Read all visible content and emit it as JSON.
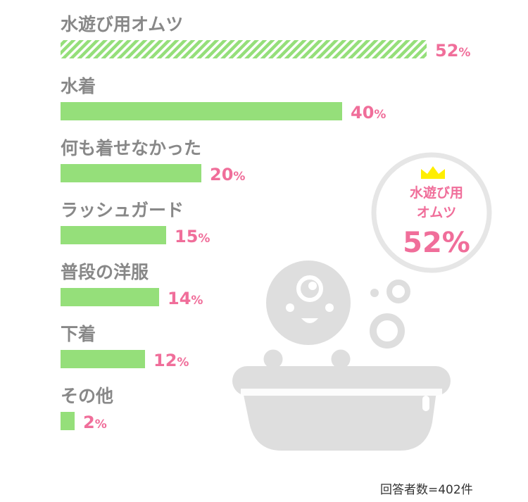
{
  "chart_data": {
    "type": "bar",
    "orientation": "horizontal",
    "categories": [
      "水遊び用オムツ",
      "水着",
      "何も着せなかった",
      "ラッシュガード",
      "普段の洋服",
      "下着",
      "その他"
    ],
    "values": [
      52,
      40,
      20,
      15,
      14,
      12,
      2
    ],
    "value_unit": "%",
    "highlight_index": 0,
    "colors": {
      "bar": "#95df7a",
      "bar_highlight_stripe": "#95df7a",
      "value_text": "#f06e9a",
      "label_text": "#888888",
      "illustration": "#dedede",
      "crown": "#ffee00"
    },
    "grid": false
  },
  "badge": {
    "line1": "水遊び用",
    "line2": "オムツ",
    "value": "52%",
    "icon": "crown-icon"
  },
  "illustration": {
    "icon": "baby-in-bathtub-icon"
  },
  "footnote": "回答者数=402件"
}
